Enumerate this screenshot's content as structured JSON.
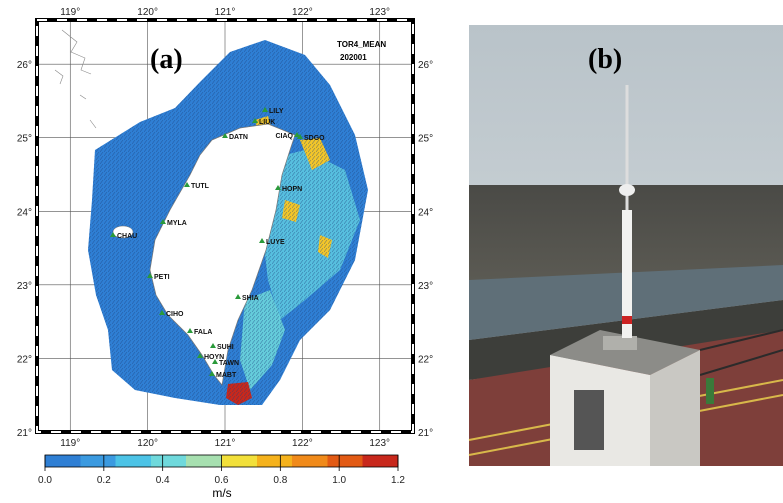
{
  "panel_a": {
    "label": "(a)",
    "title": "TOR4_MEAN",
    "date": "202001",
    "lon_lim": [
      118.57,
      123.43
    ],
    "lat_lim": [
      21,
      26.6
    ],
    "lon_ticks": [
      {
        "value": 119,
        "label": "119°"
      },
      {
        "value": 120,
        "label": "120°"
      },
      {
        "value": 121,
        "label": "121°"
      },
      {
        "value": 122,
        "label": "122°"
      },
      {
        "value": 123,
        "label": "123°"
      }
    ],
    "lat_ticks": [
      {
        "value": 21,
        "label": "21°"
      },
      {
        "value": 22,
        "label": "22°"
      },
      {
        "value": 23,
        "label": "23°"
      },
      {
        "value": 24,
        "label": "24°"
      },
      {
        "value": 25,
        "label": "25°"
      },
      {
        "value": 26,
        "label": "26°"
      }
    ],
    "stations": [
      "LILY",
      "LIUK",
      "DATN",
      "CIAQ",
      "SDGO",
      "TUTL",
      "HOPN",
      "MYLA",
      "CHAU",
      "LUYE",
      "PETI",
      "SHIA",
      "CIHO",
      "FALA",
      "SUHI",
      "HOYN",
      "TAWN",
      "MABT"
    ],
    "colorbar": {
      "lim": [
        0,
        1.2
      ],
      "label": "m/s",
      "colors": [
        "#2f7fd4",
        "#3b9ae0",
        "#4cc3e6",
        "#6fd9dc",
        "#a7e0b0",
        "#f2e03a",
        "#f5b21c",
        "#f08a1a",
        "#e25a14",
        "#c8281c"
      ],
      "ticks": [
        {
          "value": 0,
          "label": "0.0"
        },
        {
          "value": 0.2,
          "label": "0.2"
        },
        {
          "value": 0.4,
          "label": "0.4"
        },
        {
          "value": 0.6,
          "label": "0.6"
        },
        {
          "value": 0.8,
          "label": "0.8"
        },
        {
          "value": 1,
          "label": "1.0"
        },
        {
          "value": 1.2,
          "label": "1.2"
        }
      ]
    }
  },
  "panel_b": {
    "label": "(b)"
  }
}
